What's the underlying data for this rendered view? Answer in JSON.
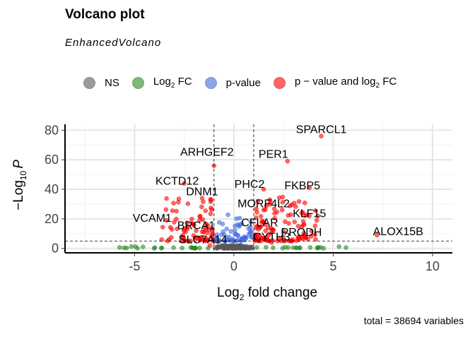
{
  "chart_data": {
    "type": "scatter",
    "title": "Volcano plot",
    "subtitle": "EnhancedVolcano",
    "xlabel_main": "Log",
    "xlabel_sub": "2",
    "xlabel_rest": " fold change",
    "ylabel_minus": "−",
    "ylabel_main": "Log",
    "ylabel_sub": "10",
    "ylabel_p": "P",
    "xlim": [
      -8.5,
      11
    ],
    "ylim": [
      -3,
      84
    ],
    "x_ticks": [
      -5,
      0,
      5,
      10
    ],
    "x_tick_labels": [
      "-5",
      "0",
      "5",
      "10"
    ],
    "y_ticks": [
      0,
      20,
      40,
      60,
      80
    ],
    "y_tick_labels": [
      "0",
      "20",
      "40",
      "60",
      "80"
    ],
    "fc_cutoffs": [
      -1,
      1
    ],
    "p_cutoff": 5,
    "grid": true,
    "legend_position": "top",
    "caption": "total = 38694 variables",
    "legend": [
      {
        "key": "ns",
        "text": "NS",
        "sub": "",
        "rest": "",
        "color": "#595959"
      },
      {
        "key": "fc",
        "text": "Log",
        "sub": "2",
        "rest": " FC",
        "color": "#228b22"
      },
      {
        "key": "p",
        "text": "p-value",
        "sub": "",
        "rest": "",
        "color": "#4169e1"
      },
      {
        "key": "pfc",
        "text": "p − value and log",
        "sub": "2",
        "rest": " FC",
        "color": "#ff0000"
      }
    ],
    "colors": {
      "ns": "#595959",
      "fc": "#228b22",
      "p": "#4169e1",
      "pfc": "#ff0000"
    },
    "labeled_points": [
      {
        "label": "SPARCL1",
        "x": 4.4,
        "y": 76
      },
      {
        "label": "PER1",
        "x": 2.7,
        "y": 59
      },
      {
        "label": "ARHGEF2",
        "x": -1.0,
        "y": 56
      },
      {
        "label": "KCTD12",
        "x": -2.5,
        "y": 44
      },
      {
        "label": "PHC2",
        "x": 1.5,
        "y": 40
      },
      {
        "label": "FKBP5",
        "x": 3.8,
        "y": 41
      },
      {
        "label": "DNM1",
        "x": -1.6,
        "y": 34
      },
      {
        "label": "MORF4L2",
        "x": 1.5,
        "y": 26
      },
      {
        "label": "VCAM1",
        "x": -3.4,
        "y": 19
      },
      {
        "label": "KLF15",
        "x": 3.8,
        "y": 22
      },
      {
        "label": "CFLAR",
        "x": 1.3,
        "y": 14
      },
      {
        "label": "BRCA1",
        "x": -1.9,
        "y": 12
      },
      {
        "label": "ALOX15B",
        "x": 7.2,
        "y": 9
      },
      {
        "label": "PRODH",
        "x": 3.4,
        "y": 7
      },
      {
        "label": "CYTH3",
        "x": 1.9,
        "y": 4
      },
      {
        "label": "SLC7A14",
        "x": -1.2,
        "y": 2
      }
    ]
  }
}
